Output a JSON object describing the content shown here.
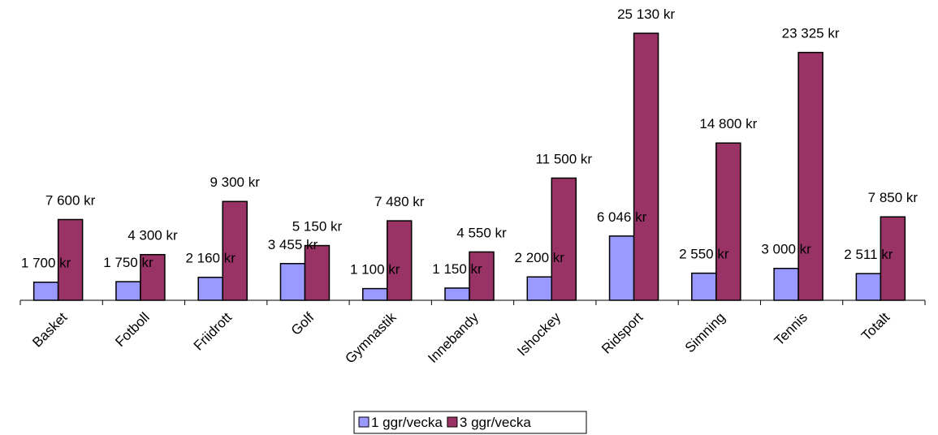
{
  "chart_data": {
    "type": "bar",
    "categories": [
      "Basket",
      "Fotboll",
      "Friidrott",
      "Golf",
      "Gymnastik",
      "Innebandy",
      "Ishockey",
      "Ridsport",
      "Simning",
      "Tennis",
      "Totalt"
    ],
    "series": [
      {
        "name": "1 ggr/vecka",
        "color": "#9999ff",
        "values": [
          1700,
          1750,
          2160,
          3455,
          1100,
          1150,
          2200,
          6046,
          2550,
          3000,
          2511
        ],
        "value_labels": [
          "1 700 kr",
          "1 750 kr",
          "2 160 kr",
          "3 455 kr",
          "1 100 kr",
          "1 150 kr",
          "2 200 kr",
          "6 046 kr",
          "2 550 kr",
          "3 000 kr",
          "2 511 kr"
        ]
      },
      {
        "name": "3 ggr/vecka",
        "color": "#993366",
        "values": [
          7600,
          4300,
          9300,
          5150,
          7480,
          4550,
          11500,
          25130,
          14800,
          23325,
          7850
        ],
        "value_labels": [
          "7 600 kr",
          "4 300 kr",
          "9 300 kr",
          "5 150 kr",
          "7 480 kr",
          "4 550 kr",
          "11 500 kr",
          "25 130 kr",
          "14 800 kr",
          "23 325 kr",
          "7 850 kr"
        ]
      }
    ]
  }
}
